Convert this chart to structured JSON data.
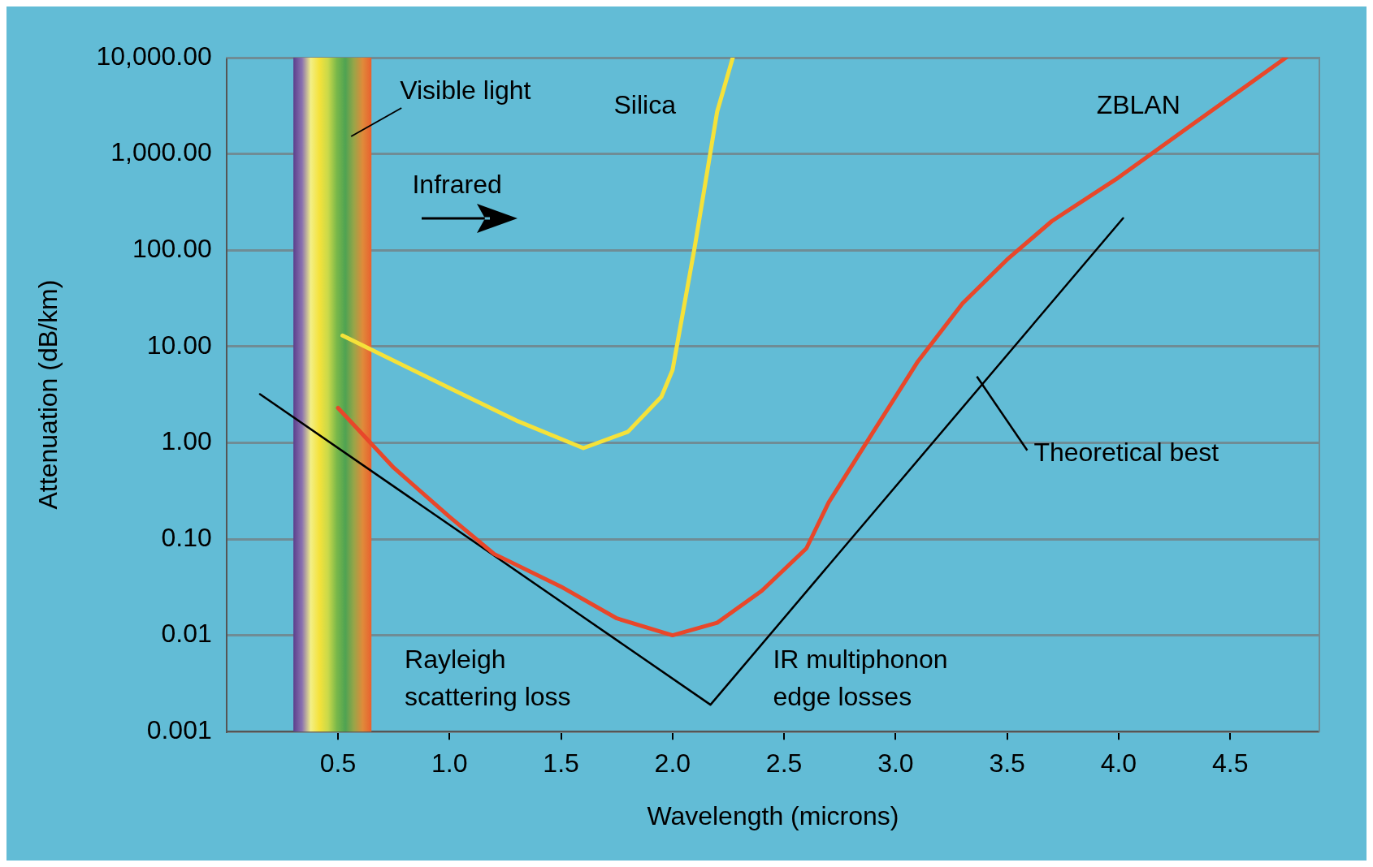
{
  "chart_data": {
    "type": "line",
    "xlabel": "Wavelength (microns)",
    "ylabel": "Attenuation (dB/km)",
    "log": "y",
    "grid": "y",
    "legend": false,
    "marker": "none",
    "line_style": "solid",
    "xlim": [
      0,
      4.9
    ],
    "xticks": [
      {
        "value": 0.5,
        "label": "0.5"
      },
      {
        "value": 1,
        "label": "1.0"
      },
      {
        "value": 1.5,
        "label": "1.5"
      },
      {
        "value": 2,
        "label": "2.0"
      },
      {
        "value": 2.5,
        "label": "2.5"
      },
      {
        "value": 3,
        "label": "3.0"
      },
      {
        "value": 3.5,
        "label": "3.5"
      },
      {
        "value": 4,
        "label": "4.0"
      },
      {
        "value": 4.5,
        "label": "4.5"
      }
    ],
    "ylim": [
      0.001,
      10000
    ],
    "yticks": [
      {
        "value": 0.001,
        "label": "0.001"
      },
      {
        "value": 0.01,
        "label": "0.01"
      },
      {
        "value": 0.1,
        "label": "0.10"
      },
      {
        "value": 1,
        "label": "1.00"
      },
      {
        "value": 10,
        "label": "10.00"
      },
      {
        "value": 100,
        "label": "100.00"
      },
      {
        "value": 1000,
        "label": "1,000.00"
      },
      {
        "value": 10000,
        "label": "10,000.00"
      }
    ],
    "series": [
      {
        "name": "Silica",
        "color": "#f5e23a",
        "x": [
          0.52,
          1.0,
          1.3,
          1.6,
          1.8,
          1.95,
          2.0,
          2.1,
          2.2,
          2.27
        ],
        "values": [
          13,
          3.7,
          1.7,
          0.88,
          1.3,
          3,
          5.7,
          110,
          2750,
          10000
        ]
      },
      {
        "name": "ZBLAN",
        "color": "#e8472a",
        "x": [
          0.5,
          0.75,
          1.0,
          1.2,
          1.5,
          1.75,
          2.0,
          2.2,
          2.4,
          2.6,
          2.7,
          2.9,
          3.1,
          3.3,
          3.5,
          3.7,
          4.0,
          4.3,
          4.75
        ],
        "values": [
          2.3,
          0.55,
          0.17,
          0.07,
          0.032,
          0.015,
          0.01,
          0.0135,
          0.029,
          0.08,
          0.24,
          1.3,
          7,
          28,
          80,
          200,
          570,
          1800,
          10000
        ]
      },
      {
        "name": "Theoretical best",
        "color": "#000000",
        "x": [
          0.15,
          2.17,
          4.02
        ],
        "values": [
          3.2,
          0.0019,
          215
        ]
      }
    ],
    "bands": [
      {
        "axis": "x",
        "from": 0.3,
        "to": 0.65,
        "label": "Visible light"
      }
    ],
    "annotations": [
      "Infrared",
      "Rayleigh scattering loss",
      "IR multiphonon edge losses"
    ]
  }
}
